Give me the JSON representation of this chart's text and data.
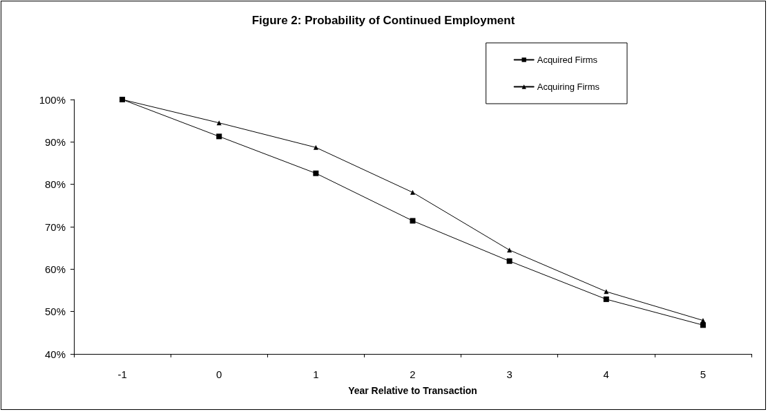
{
  "chart_data": {
    "type": "line",
    "title": "Figure 2: Probability of Continued Employment",
    "xlabel": "Year Relative to Transaction",
    "categories": [
      "-1",
      "0",
      "1",
      "2",
      "3",
      "4",
      "5"
    ],
    "series": [
      {
        "name": "Acquired Firms",
        "color": "#000000",
        "marker": "square",
        "values": [
          100,
          91.3,
          82.6,
          71.4,
          61.9,
          52.9,
          46.8
        ]
      },
      {
        "name": "Acquiring Firms",
        "color": "#000000",
        "marker": "triangle",
        "values": [
          100,
          94.5,
          88.7,
          78.1,
          64.5,
          54.7,
          47.9
        ]
      }
    ],
    "ylim": [
      40,
      100
    ],
    "yticks": [
      {
        "value": 40,
        "label": "40%"
      },
      {
        "value": 50,
        "label": "50%"
      },
      {
        "value": 60,
        "label": "60%"
      },
      {
        "value": 70,
        "label": "70%"
      },
      {
        "value": 80,
        "label": "80%"
      },
      {
        "value": 90,
        "label": "90%"
      },
      {
        "value": 100,
        "label": "100%"
      }
    ],
    "grid": false,
    "legend": "top right",
    "line_style": "solid"
  }
}
